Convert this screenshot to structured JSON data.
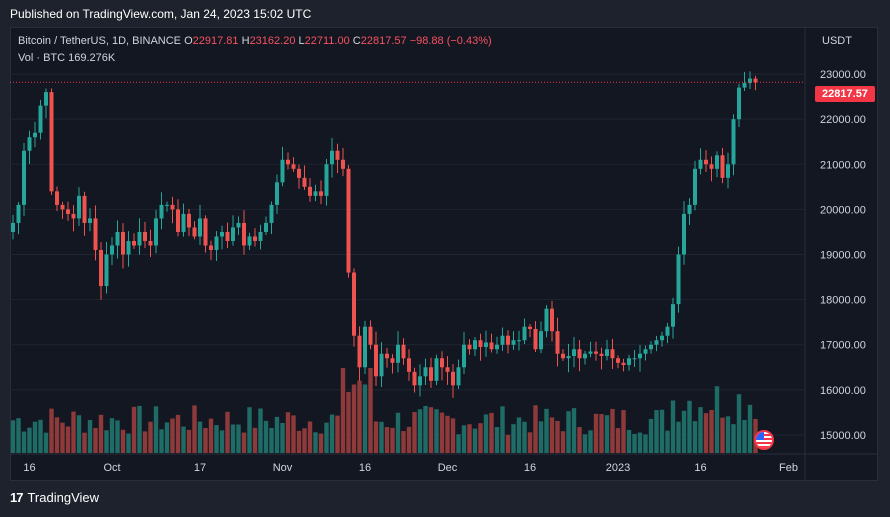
{
  "header": {
    "published": "Published on TradingView.com, Jan 24, 2023 15:02 UTC"
  },
  "legend": {
    "symbol": "Bitcoin / TetherUS, 1D, BINANCE",
    "open_label": "O",
    "open": "22917.81",
    "high_label": "H",
    "high": "23162.20",
    "low_label": "L",
    "low": "22711.00",
    "close_label": "C",
    "close": "22817.57",
    "change": "−98.88 (−0.43%)",
    "vol_label": "Vol · BTC",
    "vol_value": "169.276K"
  },
  "axis": {
    "unit": "USDT"
  },
  "last_price_tag": "22817.57",
  "brand": {
    "logo": "17",
    "name": "TradingView"
  },
  "colors": {
    "up": "#26a69a",
    "down": "#ef5350",
    "vol_up": "#1f6b66",
    "vol_down": "#8f3a3a",
    "bg": "#131722",
    "grid": "#1f2431",
    "text": "#d1d4dc"
  },
  "chart_data": {
    "type": "candlestick",
    "title": "Bitcoin / TetherUS, 1D, BINANCE",
    "ylabel": "USDT",
    "ylim": [
      14600,
      23600
    ],
    "yticks": [
      "15000.00",
      "16000.00",
      "17000.00",
      "18000.00",
      "19000.00",
      "20000.00",
      "21000.00",
      "22000.00",
      "23000.00"
    ],
    "ytick_values": [
      15000,
      16000,
      17000,
      18000,
      19000,
      20000,
      21000,
      22000,
      23000
    ],
    "xticks": [
      {
        "label": "16",
        "day": 3
      },
      {
        "label": "Oct",
        "day": 18
      },
      {
        "label": "17",
        "day": 34
      },
      {
        "label": "Nov",
        "day": 49
      },
      {
        "label": "16",
        "day": 64
      },
      {
        "label": "Dec",
        "day": 79
      },
      {
        "label": "16",
        "day": 94
      },
      {
        "label": "2023",
        "day": 110
      },
      {
        "label": "16",
        "day": 125
      },
      {
        "label": "Feb",
        "day": 141
      }
    ],
    "last_price": 22817.57,
    "closes": [
      19700,
      20100,
      21300,
      21600,
      21700,
      22300,
      22600,
      20400,
      20100,
      20000,
      19900,
      19800,
      20300,
      19700,
      19800,
      19100,
      18300,
      19000,
      19200,
      19500,
      19000,
      19300,
      19200,
      19500,
      19300,
      19200,
      19800,
      20100,
      20100,
      20000,
      19500,
      19900,
      19600,
      19400,
      19800,
      19200,
      19100,
      19400,
      19500,
      19300,
      19600,
      19700,
      19200,
      19400,
      19300,
      19500,
      19700,
      20100,
      20600,
      21100,
      21000,
      20900,
      20700,
      20500,
      20300,
      20400,
      20300,
      21000,
      21300,
      21100,
      20900,
      18600,
      17200,
      16500,
      17400,
      17000,
      16300,
      16800,
      16700,
      16600,
      17000,
      16700,
      16400,
      16100,
      16300,
      16500,
      16200,
      16700,
      16500,
      16400,
      16100,
      16500,
      17000,
      16900,
      17100,
      16950,
      17050,
      16900,
      17000,
      17200,
      17000,
      17100,
      17100,
      17400,
      17350,
      16900,
      17300,
      17800,
      17300,
      16800,
      16700,
      16750,
      16900,
      16700,
      16800,
      16850,
      16800,
      16750,
      16900,
      16700,
      16600,
      16550,
      16700,
      16700,
      16800,
      16900,
      17000,
      17100,
      17200,
      17400,
      17900,
      19000,
      19900,
      20100,
      20900,
      21100,
      21000,
      20900,
      21200,
      20700,
      21000,
      22000,
      22700,
      22800,
      22900,
      22817
    ]
  }
}
